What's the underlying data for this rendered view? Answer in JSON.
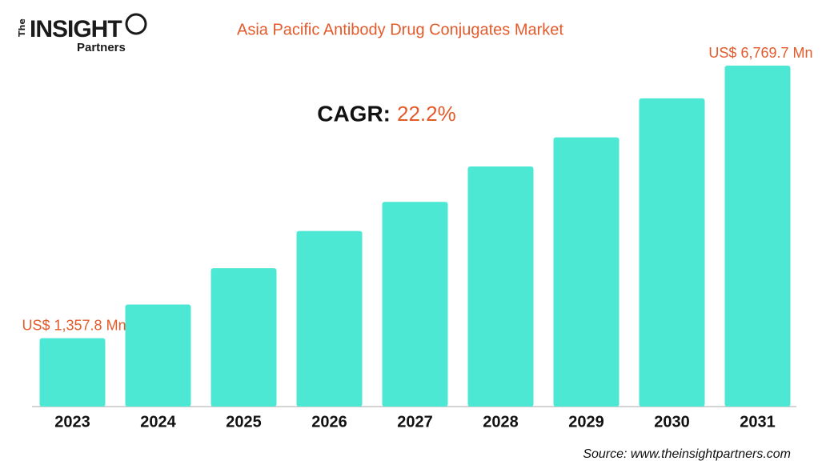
{
  "logo": {
    "the": "The",
    "insight": "INSIGHT",
    "partners": "Partners"
  },
  "chart_data": {
    "type": "bar",
    "title": "Asia Pacific Antibody Drug Conjugates Market",
    "cagr": {
      "label": "CAGR:",
      "value": "22.2%"
    },
    "categories": [
      "2023",
      "2024",
      "2025",
      "2026",
      "2027",
      "2028",
      "2029",
      "2030",
      "2031"
    ],
    "values": [
      1357.8,
      2026,
      2747,
      3487,
      4064,
      4768,
      5345,
      6121,
      6769.7
    ],
    "value_labels": [
      "US$ 1,357.8 Mn",
      null,
      null,
      null,
      null,
      null,
      null,
      null,
      "US$ 6,769.7 Mn"
    ],
    "color": "#4de8d3",
    "source": "Source: www.theinsightpartners.com"
  }
}
